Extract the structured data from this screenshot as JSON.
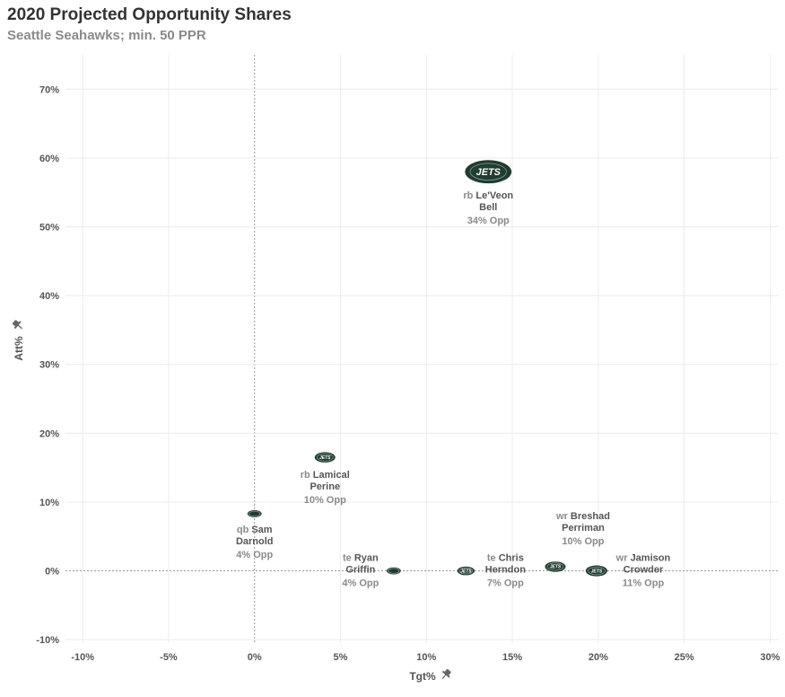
{
  "chart_data": {
    "type": "scatter",
    "title": "2020 Projected Opportunity Shares",
    "subtitle": "Seattle Seahawks; min. 50 PPR",
    "xlabel": "Tgt%",
    "ylabel": "Att%",
    "xlim": [
      -11,
      30.5
    ],
    "ylim": [
      -10.5,
      75
    ],
    "xticks": [
      -10,
      -5,
      0,
      5,
      10,
      15,
      20,
      25,
      30
    ],
    "xtick_labels": [
      "-10%",
      "-5%",
      "0%",
      "5%",
      "10%",
      "15%",
      "20%",
      "25%",
      "30%"
    ],
    "yticks": [
      -10,
      0,
      10,
      20,
      30,
      40,
      50,
      60,
      70
    ],
    "ytick_labels": [
      "-10%",
      "0%",
      "10%",
      "20%",
      "30%",
      "40%",
      "50%",
      "60%",
      "70%"
    ],
    "grid": true,
    "marker": "team-logo",
    "logo_text": "JETS",
    "logo_color": "#1f3d31",
    "points": [
      {
        "pos": "rb",
        "first": "Le'Veon",
        "last": "Bell",
        "opp": "34% Opp",
        "x": 13.6,
        "y": 58.0,
        "size": 34,
        "label_side": "below"
      },
      {
        "pos": "rb",
        "first": "Lamical",
        "last": "Perine",
        "opp": "10% Opp",
        "x": 4.1,
        "y": 16.5,
        "size": 10,
        "label_side": "below"
      },
      {
        "pos": "qb",
        "first": "Sam",
        "last": "Darnold",
        "opp": "4% Opp",
        "x": 0.0,
        "y": 8.3,
        "size": 4,
        "label_side": "below"
      },
      {
        "pos": "te",
        "first": "Ryan",
        "last": "Griffin",
        "opp": "4% Opp",
        "x": 8.1,
        "y": 0.0,
        "size": 4,
        "label_side": "left"
      },
      {
        "pos": "te",
        "first": "Chris",
        "last": "Herndon",
        "opp": "7% Opp",
        "x": 12.3,
        "y": 0.0,
        "size": 7,
        "label_side": "right"
      },
      {
        "pos": "wr",
        "first": "Breshad",
        "last": "Perriman",
        "opp": "10% Opp",
        "x": 17.5,
        "y": 0.6,
        "size": 10,
        "label_side": "above"
      },
      {
        "pos": "wr",
        "first": "Jamison",
        "last": "Crowder",
        "opp": "11% Opp",
        "x": 19.9,
        "y": 0.0,
        "size": 11,
        "label_side": "right"
      }
    ]
  }
}
